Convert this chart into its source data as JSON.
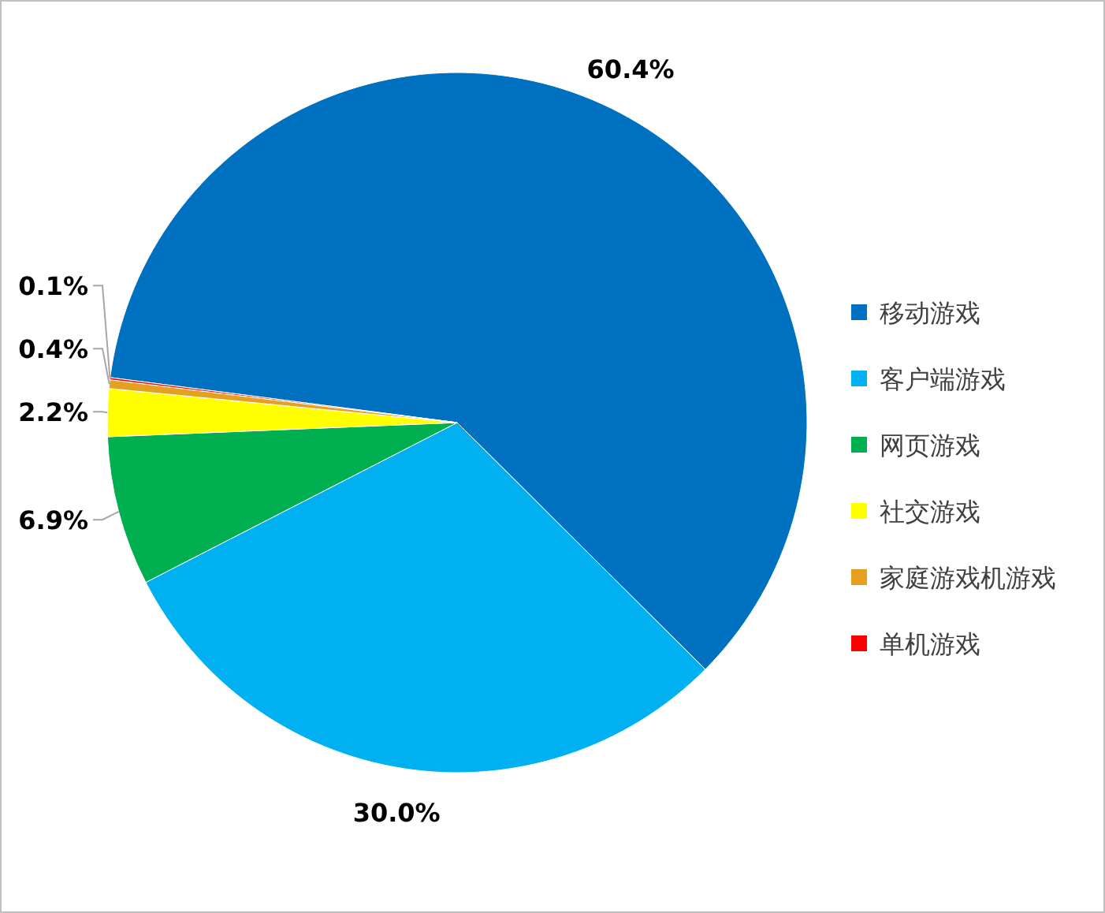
{
  "chart_data": {
    "type": "pie",
    "categories": [
      "移动游戏",
      "客户端游戏",
      "网页游戏",
      "社交游戏",
      "家庭游戏机游戏",
      "单机游戏"
    ],
    "values": [
      60.4,
      30.0,
      6.9,
      2.2,
      0.4,
      0.1
    ],
    "colors": [
      "#0070c0",
      "#00b0f0",
      "#00b050",
      "#ffff00",
      "#e6a020",
      "#ff0000"
    ],
    "value_labels": [
      "60.4%",
      "30.0%",
      "6.9%",
      "2.2%",
      "0.4%",
      "0.1%"
    ],
    "legend": "right"
  }
}
